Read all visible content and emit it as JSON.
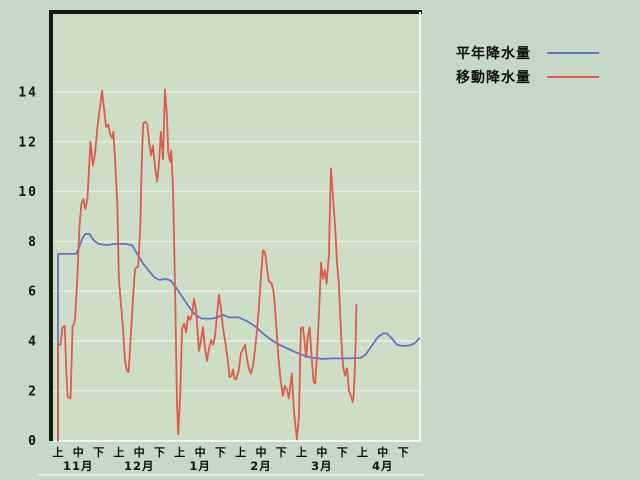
{
  "legend": {
    "items": [
      {
        "label": "平年降水量",
        "color": "#6372c1"
      },
      {
        "label": "移動降水量",
        "color": "#dc5a4e"
      }
    ]
  },
  "colors": {
    "page_background": "#c6d8c6",
    "plot_background": "#cedec6",
    "gridline": "#e6efe2",
    "frame_dark": "#131a10",
    "frame_light": "#eef5ec",
    "label_text": "#0a0f0a"
  },
  "chart_data": {
    "type": "line",
    "title": "",
    "xlabel": "",
    "ylabel": "",
    "grid": true,
    "legend_position": "top-right",
    "x_axis": {
      "period_labels": [
        "上",
        "中",
        "下"
      ],
      "months": [
        "11月",
        "12月",
        "1月",
        "2月",
        "3月",
        "4月"
      ],
      "total_ticks": 18
    },
    "y_axis": {
      "min": 0,
      "max": 14,
      "tick_step": 2,
      "ticks": [
        0,
        2,
        4,
        6,
        8,
        10,
        12,
        14
      ]
    },
    "series": [
      {
        "name": "平年降水量",
        "color": "#6372c1",
        "points": [
          [
            0,
            0
          ],
          [
            0,
            7.5
          ],
          [
            0.9,
            7.5
          ],
          [
            1.08,
            7.85
          ],
          [
            1.22,
            8.15
          ],
          [
            1.35,
            8.3
          ],
          [
            1.55,
            8.3
          ],
          [
            1.75,
            8.05
          ],
          [
            2.0,
            7.9
          ],
          [
            2.4,
            7.85
          ],
          [
            2.8,
            7.9
          ],
          [
            3.3,
            7.9
          ],
          [
            3.65,
            7.85
          ],
          [
            3.9,
            7.5
          ],
          [
            4.2,
            7.1
          ],
          [
            4.5,
            6.8
          ],
          [
            4.75,
            6.55
          ],
          [
            5.0,
            6.45
          ],
          [
            5.3,
            6.5
          ],
          [
            5.55,
            6.42
          ],
          [
            5.85,
            6.1
          ],
          [
            6.1,
            5.8
          ],
          [
            6.35,
            5.5
          ],
          [
            6.6,
            5.2
          ],
          [
            6.85,
            5.0
          ],
          [
            7.1,
            4.9
          ],
          [
            7.6,
            4.9
          ],
          [
            8.0,
            5.0
          ],
          [
            8.15,
            5.05
          ],
          [
            8.4,
            4.95
          ],
          [
            8.9,
            4.95
          ],
          [
            9.3,
            4.8
          ],
          [
            9.7,
            4.6
          ],
          [
            10.1,
            4.3
          ],
          [
            10.5,
            4.05
          ],
          [
            10.9,
            3.85
          ],
          [
            11.3,
            3.7
          ],
          [
            11.7,
            3.55
          ],
          [
            12.1,
            3.42
          ],
          [
            12.5,
            3.33
          ],
          [
            13.0,
            3.28
          ],
          [
            13.6,
            3.3
          ],
          [
            14.3,
            3.3
          ],
          [
            14.9,
            3.32
          ],
          [
            15.15,
            3.45
          ],
          [
            15.45,
            3.8
          ],
          [
            15.75,
            4.15
          ],
          [
            16.0,
            4.3
          ],
          [
            16.2,
            4.3
          ],
          [
            16.45,
            4.1
          ],
          [
            16.7,
            3.85
          ],
          [
            17.0,
            3.8
          ],
          [
            17.3,
            3.82
          ],
          [
            17.55,
            3.9
          ],
          [
            17.8,
            4.1
          ]
        ]
      },
      {
        "name": "移動降水量",
        "color": "#dc5a4e",
        "points": [
          [
            0,
            0
          ],
          [
            0,
            3.85
          ],
          [
            0.12,
            3.85
          ],
          [
            0.22,
            4.55
          ],
          [
            0.33,
            4.6
          ],
          [
            0.42,
            2.6
          ],
          [
            0.48,
            1.75
          ],
          [
            0.62,
            1.7
          ],
          [
            0.72,
            4.6
          ],
          [
            0.78,
            4.65
          ],
          [
            0.84,
            4.9
          ],
          [
            0.95,
            6.5
          ],
          [
            1.05,
            8.5
          ],
          [
            1.15,
            9.5
          ],
          [
            1.25,
            9.7
          ],
          [
            1.35,
            9.3
          ],
          [
            1.45,
            9.7
          ],
          [
            1.6,
            12.0
          ],
          [
            1.72,
            11.05
          ],
          [
            1.82,
            11.5
          ],
          [
            1.97,
            12.8
          ],
          [
            2.07,
            13.4
          ],
          [
            2.17,
            14.05
          ],
          [
            2.27,
            13.3
          ],
          [
            2.37,
            12.6
          ],
          [
            2.47,
            12.7
          ],
          [
            2.57,
            12.3
          ],
          [
            2.67,
            12.15
          ],
          [
            2.73,
            12.4
          ],
          [
            2.82,
            11.2
          ],
          [
            2.92,
            9.5
          ],
          [
            3.0,
            6.5
          ],
          [
            3.1,
            5.5
          ],
          [
            3.2,
            4.5
          ],
          [
            3.3,
            3.2
          ],
          [
            3.4,
            2.8
          ],
          [
            3.48,
            2.75
          ],
          [
            3.57,
            4.0
          ],
          [
            3.7,
            5.8
          ],
          [
            3.8,
            6.9
          ],
          [
            3.95,
            7.0
          ],
          [
            4.05,
            8.5
          ],
          [
            4.14,
            11.5
          ],
          [
            4.2,
            12.75
          ],
          [
            4.3,
            12.8
          ],
          [
            4.4,
            12.7
          ],
          [
            4.49,
            12.0
          ],
          [
            4.58,
            11.45
          ],
          [
            4.68,
            11.85
          ],
          [
            4.78,
            11.0
          ],
          [
            4.88,
            10.4
          ],
          [
            4.98,
            11.2
          ],
          [
            5.07,
            12.4
          ],
          [
            5.17,
            11.3
          ],
          [
            5.27,
            14.1
          ],
          [
            5.37,
            13.0
          ],
          [
            5.43,
            11.6
          ],
          [
            5.52,
            11.2
          ],
          [
            5.58,
            11.65
          ],
          [
            5.67,
            10.0
          ],
          [
            5.77,
            6.0
          ],
          [
            5.86,
            1.5
          ],
          [
            5.92,
            0.25
          ],
          [
            6.02,
            1.8
          ],
          [
            6.11,
            4.5
          ],
          [
            6.21,
            4.7
          ],
          [
            6.31,
            4.35
          ],
          [
            6.41,
            5.0
          ],
          [
            6.51,
            4.85
          ],
          [
            6.61,
            5.1
          ],
          [
            6.7,
            5.7
          ],
          [
            6.81,
            5.2
          ],
          [
            6.94,
            3.6
          ],
          [
            7.04,
            4.0
          ],
          [
            7.14,
            4.55
          ],
          [
            7.24,
            3.7
          ],
          [
            7.34,
            3.2
          ],
          [
            7.44,
            3.7
          ],
          [
            7.54,
            4.05
          ],
          [
            7.64,
            3.85
          ],
          [
            7.73,
            4.15
          ],
          [
            7.83,
            5.0
          ],
          [
            7.93,
            5.85
          ],
          [
            8.03,
            5.3
          ],
          [
            8.13,
            4.5
          ],
          [
            8.25,
            3.9
          ],
          [
            8.37,
            3.2
          ],
          [
            8.45,
            2.55
          ],
          [
            8.54,
            2.6
          ],
          [
            8.62,
            2.85
          ],
          [
            8.7,
            2.5
          ],
          [
            8.77,
            2.45
          ],
          [
            8.9,
            2.8
          ],
          [
            9.01,
            3.5
          ],
          [
            9.21,
            3.85
          ],
          [
            9.31,
            3.3
          ],
          [
            9.41,
            2.85
          ],
          [
            9.51,
            2.7
          ],
          [
            9.6,
            3.0
          ],
          [
            9.7,
            3.6
          ],
          [
            9.8,
            4.4
          ],
          [
            9.9,
            5.4
          ],
          [
            10.0,
            6.6
          ],
          [
            10.1,
            7.65
          ],
          [
            10.2,
            7.55
          ],
          [
            10.3,
            6.9
          ],
          [
            10.39,
            6.4
          ],
          [
            10.53,
            6.3
          ],
          [
            10.63,
            5.9
          ],
          [
            10.73,
            4.9
          ],
          [
            10.85,
            3.4
          ],
          [
            10.97,
            2.4
          ],
          [
            11.08,
            1.8
          ],
          [
            11.17,
            2.2
          ],
          [
            11.27,
            2.05
          ],
          [
            11.37,
            1.7
          ],
          [
            11.52,
            2.7
          ],
          [
            11.62,
            1.2
          ],
          [
            11.77,
            0.05
          ],
          [
            11.87,
            1.0
          ],
          [
            11.96,
            4.5
          ],
          [
            12.06,
            4.55
          ],
          [
            12.16,
            3.9
          ],
          [
            12.22,
            3.35
          ],
          [
            12.31,
            4.2
          ],
          [
            12.4,
            4.55
          ],
          [
            12.49,
            3.4
          ],
          [
            12.59,
            2.35
          ],
          [
            12.67,
            2.3
          ],
          [
            12.77,
            3.6
          ],
          [
            12.86,
            5.2
          ],
          [
            12.96,
            7.15
          ],
          [
            13.05,
            6.5
          ],
          [
            13.15,
            6.85
          ],
          [
            13.23,
            6.3
          ],
          [
            13.35,
            7.5
          ],
          [
            13.4,
            9.5
          ],
          [
            13.45,
            10.93
          ],
          [
            13.55,
            9.7
          ],
          [
            13.65,
            8.6
          ],
          [
            13.74,
            7.2
          ],
          [
            13.84,
            6.2
          ],
          [
            13.94,
            4.3
          ],
          [
            14.04,
            3.0
          ],
          [
            14.14,
            2.6
          ],
          [
            14.24,
            2.9
          ],
          [
            14.33,
            2.0
          ],
          [
            14.43,
            1.8
          ],
          [
            14.51,
            1.55
          ],
          [
            14.56,
            1.8
          ],
          [
            14.61,
            2.6
          ],
          [
            14.66,
            3.9
          ],
          [
            14.7,
            5.45
          ]
        ]
      }
    ]
  }
}
